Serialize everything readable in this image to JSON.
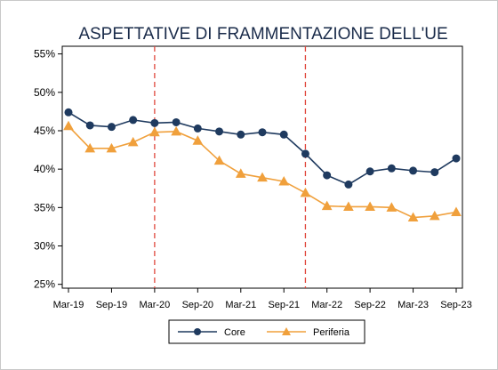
{
  "chart_data": {
    "type": "line",
    "title": "ASPETTATIVE DI FRAMMENTAZIONE DELL'UE",
    "xlabel": "",
    "ylabel": "",
    "x": [
      "Mar-19",
      "Jun-19",
      "Sep-19",
      "Dec-19",
      "Mar-20",
      "Jun-20",
      "Sep-20",
      "Dec-20",
      "Mar-21",
      "Jun-21",
      "Sep-21",
      "Dec-21",
      "Mar-22",
      "Jun-22",
      "Sep-22",
      "Dec-22",
      "Mar-23",
      "Jun-23",
      "Sep-23"
    ],
    "x_tick_labels": [
      "Mar-19",
      "Sep-19",
      "Mar-20",
      "Sep-20",
      "Mar-21",
      "Sep-21",
      "Mar-22",
      "Sep-22",
      "Mar-23",
      "Sep-23"
    ],
    "y_ticks": [
      25,
      30,
      35,
      40,
      45,
      50,
      55
    ],
    "y_tick_labels": [
      "25%",
      "30%",
      "35%",
      "40%",
      "45%",
      "50%",
      "55%"
    ],
    "ylim": [
      24.5,
      56
    ],
    "series": [
      {
        "name": "Core",
        "color": "#1f3a5f",
        "marker": "circle",
        "values": [
          47.4,
          45.7,
          45.5,
          46.4,
          46.0,
          46.1,
          45.3,
          44.9,
          44.5,
          44.8,
          44.5,
          42.0,
          39.2,
          38.0,
          39.7,
          40.1,
          39.8,
          39.6,
          41.4
        ]
      },
      {
        "name": "Periferia",
        "color": "#f0a03c",
        "marker": "triangle",
        "values": [
          45.6,
          42.7,
          42.7,
          43.5,
          44.8,
          44.9,
          43.7,
          41.1,
          39.4,
          38.9,
          38.4,
          36.9,
          35.2,
          35.1,
          35.1,
          35.0,
          33.7,
          33.9,
          34.4
        ]
      }
    ],
    "vlines": [
      {
        "x": "Mar-20",
        "color": "#e0463c",
        "style": "dashed"
      },
      {
        "x": "Dec-21",
        "color": "#e0463c",
        "style": "dashed"
      }
    ],
    "grid": false,
    "legend_position": "bottom-center"
  }
}
